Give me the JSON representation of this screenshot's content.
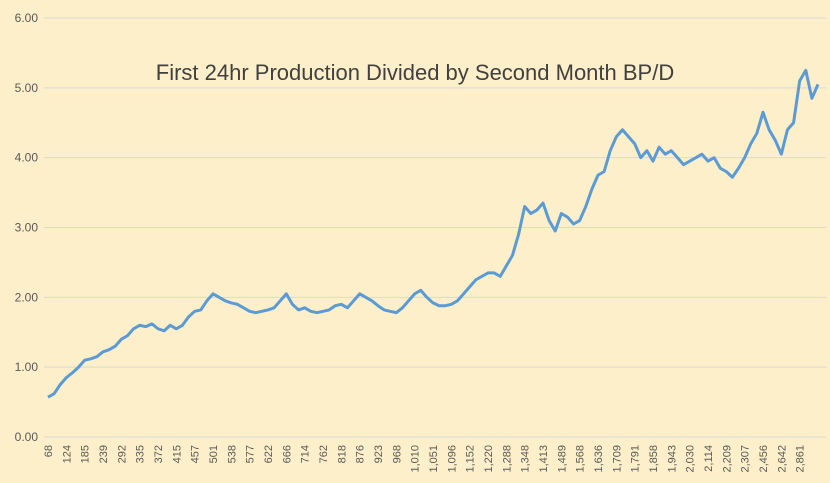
{
  "chart_data": {
    "type": "line",
    "title": "First 24hr Production Divided by Second Month BP/D",
    "categories": [
      "68",
      null,
      null,
      "124",
      null,
      null,
      "185",
      null,
      null,
      "239",
      null,
      null,
      "292",
      null,
      null,
      "335",
      null,
      null,
      "372",
      null,
      null,
      "415",
      null,
      null,
      "457",
      null,
      null,
      "501",
      null,
      null,
      "538",
      null,
      null,
      "577",
      null,
      null,
      "622",
      null,
      null,
      "666",
      null,
      null,
      "714",
      null,
      null,
      "762",
      null,
      null,
      "818",
      null,
      null,
      "876",
      null,
      null,
      "923",
      null,
      null,
      "968",
      null,
      null,
      "1,010",
      null,
      null,
      "1,051",
      null,
      null,
      "1,096",
      null,
      null,
      "1,152",
      null,
      null,
      "1,220",
      null,
      null,
      "1,288",
      null,
      null,
      "1,348",
      null,
      null,
      "1,413",
      null,
      null,
      "1,489",
      null,
      null,
      "1,568",
      null,
      null,
      "1,636",
      null,
      null,
      "1,709",
      null,
      null,
      "1,791",
      null,
      null,
      "1,858",
      null,
      null,
      "1,943",
      null,
      null,
      "2,030",
      null,
      null,
      "2,114",
      null,
      null,
      "2,209",
      null,
      null,
      "2,307",
      null,
      null,
      "2,456",
      null,
      null,
      "2,642",
      null,
      null,
      "2,861",
      null,
      null,
      null
    ],
    "values": [
      0.57,
      0.62,
      0.75,
      0.85,
      0.92,
      1.0,
      1.1,
      1.12,
      1.15,
      1.22,
      1.25,
      1.3,
      1.4,
      1.45,
      1.55,
      1.6,
      1.58,
      1.62,
      1.55,
      1.52,
      1.6,
      1.55,
      1.6,
      1.72,
      1.8,
      1.82,
      1.95,
      2.05,
      2.0,
      1.95,
      1.92,
      1.9,
      1.85,
      1.8,
      1.78,
      1.8,
      1.82,
      1.85,
      1.95,
      2.05,
      1.9,
      1.82,
      1.85,
      1.8,
      1.78,
      1.8,
      1.82,
      1.88,
      1.9,
      1.85,
      1.95,
      2.05,
      2.0,
      1.95,
      1.88,
      1.82,
      1.8,
      1.78,
      1.85,
      1.95,
      2.05,
      2.1,
      2.0,
      1.92,
      1.88,
      1.88,
      1.9,
      1.95,
      2.05,
      2.15,
      2.25,
      2.3,
      2.35,
      2.35,
      2.3,
      2.45,
      2.6,
      2.9,
      3.3,
      3.2,
      3.25,
      3.35,
      3.1,
      2.95,
      3.2,
      3.15,
      3.05,
      3.1,
      3.3,
      3.55,
      3.75,
      3.8,
      4.1,
      4.3,
      4.4,
      4.3,
      4.2,
      4.0,
      4.1,
      3.95,
      4.15,
      4.05,
      4.1,
      4.0,
      3.9,
      3.95,
      4.0,
      4.05,
      3.95,
      4.0,
      3.85,
      3.8,
      3.72,
      3.85,
      4.0,
      4.2,
      4.35,
      4.65,
      4.4,
      4.25,
      4.05,
      4.4,
      4.5,
      5.1,
      5.25,
      4.85,
      5.05
    ],
    "color": "#5b9bd5",
    "ylim": [
      0,
      6
    ],
    "yticks": [
      {
        "value": 0,
        "label": "0.00"
      },
      {
        "value": 1,
        "label": "1.00"
      },
      {
        "value": 2,
        "label": "2.00"
      },
      {
        "value": 3,
        "label": "3.00"
      },
      {
        "value": 4,
        "label": "4.00"
      },
      {
        "value": 5,
        "label": "5.00"
      },
      {
        "value": 6,
        "label": "6.00"
      }
    ],
    "grid": true
  }
}
